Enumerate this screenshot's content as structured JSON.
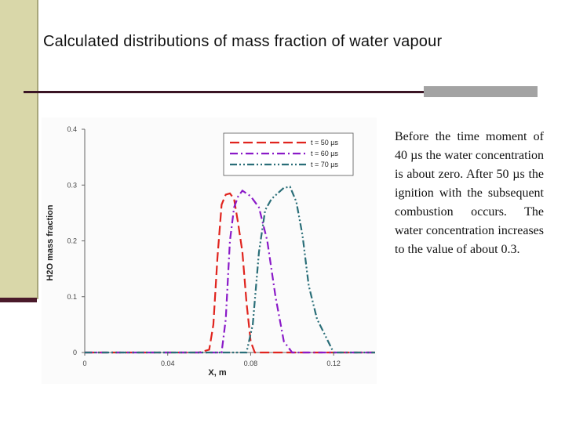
{
  "slide": {
    "title": "Calculated distributions of mass fraction of water vapour",
    "body": "Before the time moment of 40 µs the water concentration is about zero. After 50 µs the ignition with the subsequent combustion occurs. The water concentration increases to the value of about 0.3."
  },
  "colors": {
    "band": "#d9d7a9",
    "rule": "#3a1524",
    "accent": "#a3a3a3"
  },
  "chart_data": {
    "type": "line",
    "xlabel": "X, m",
    "ylabel": "H2O mass fraction",
    "xlim": [
      0,
      0.14
    ],
    "ylim": [
      0,
      0.4
    ],
    "x_ticks": [
      "0",
      "0.04",
      "0.08",
      "0.12"
    ],
    "y_ticks": [
      "0",
      "0.1",
      "0.2",
      "0.3",
      "0.4"
    ],
    "grid": false,
    "legend": "top-right",
    "series": [
      {
        "name": "t = 50 µs",
        "color": "#e0241e",
        "style": "dash",
        "x": [
          0,
          0.055,
          0.06,
          0.062,
          0.064,
          0.066,
          0.068,
          0.07,
          0.072,
          0.074,
          0.076,
          0.078,
          0.08,
          0.082,
          0.14
        ],
        "y": [
          0,
          0,
          0.005,
          0.05,
          0.17,
          0.265,
          0.283,
          0.285,
          0.275,
          0.23,
          0.18,
          0.09,
          0.02,
          0,
          0
        ]
      },
      {
        "name": "t = 60 µs",
        "color": "#8a1ac8",
        "style": "dashdot",
        "x": [
          0,
          0.066,
          0.068,
          0.07,
          0.072,
          0.074,
          0.076,
          0.08,
          0.084,
          0.088,
          0.092,
          0.096,
          0.1,
          0.14
        ],
        "y": [
          0,
          0,
          0.06,
          0.2,
          0.26,
          0.28,
          0.29,
          0.28,
          0.26,
          0.2,
          0.1,
          0.02,
          0,
          0
        ]
      },
      {
        "name": "t = 70 µs",
        "color": "#2a6e78",
        "style": "dashdotdot",
        "x": [
          0,
          0.078,
          0.081,
          0.084,
          0.087,
          0.09,
          0.093,
          0.096,
          0.099,
          0.102,
          0.105,
          0.108,
          0.112,
          0.116,
          0.12,
          0.14
        ],
        "y": [
          0,
          0,
          0.05,
          0.18,
          0.255,
          0.275,
          0.285,
          0.295,
          0.297,
          0.27,
          0.21,
          0.12,
          0.06,
          0.03,
          0,
          0
        ]
      }
    ]
  }
}
